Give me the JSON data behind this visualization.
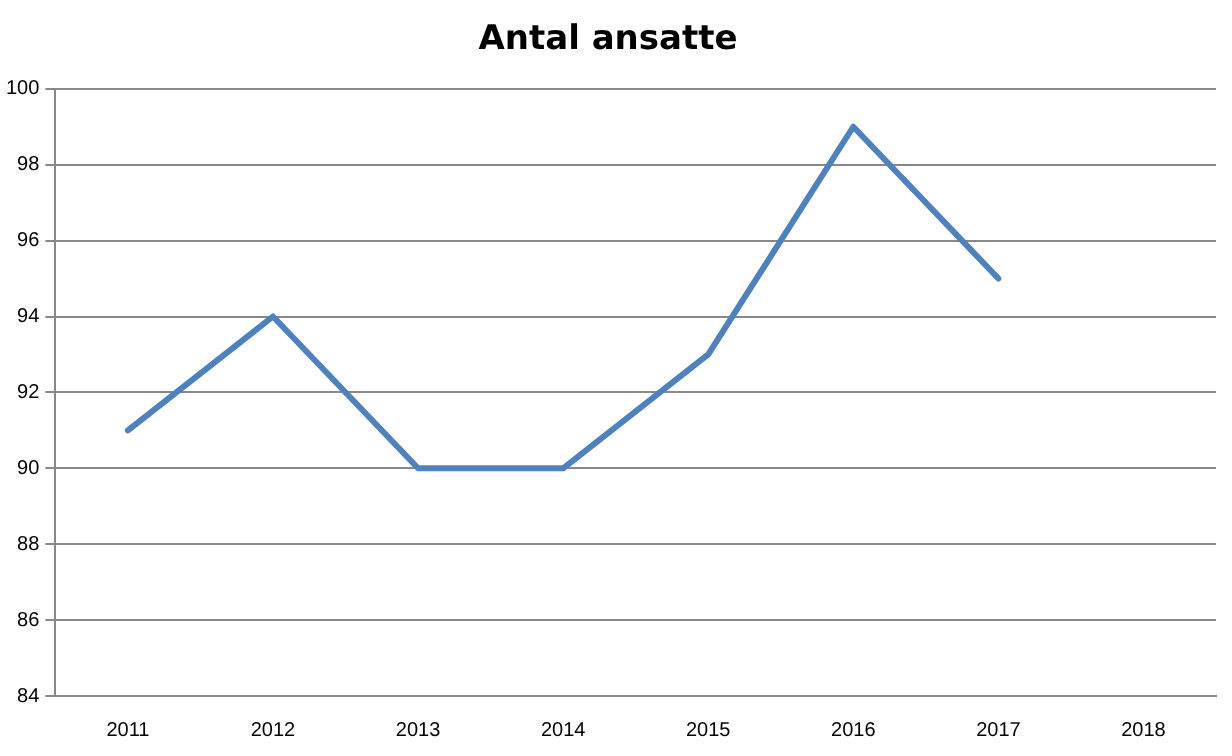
{
  "chart_data": {
    "type": "line",
    "title": "Antal ansatte",
    "categories": [
      "2011",
      "2012",
      "2013",
      "2014",
      "2015",
      "2016",
      "2017",
      "2018"
    ],
    "series": [
      {
        "color": "#4f81bd",
        "values": [
          91,
          94,
          90,
          90,
          93,
          99,
          95,
          null
        ]
      }
    ],
    "ylim": [
      84,
      100
    ],
    "yticks": [
      84,
      86,
      88,
      90,
      92,
      94,
      96,
      98,
      100
    ],
    "grid": "y",
    "legend": false,
    "marker": "none",
    "line_style": "solid"
  }
}
